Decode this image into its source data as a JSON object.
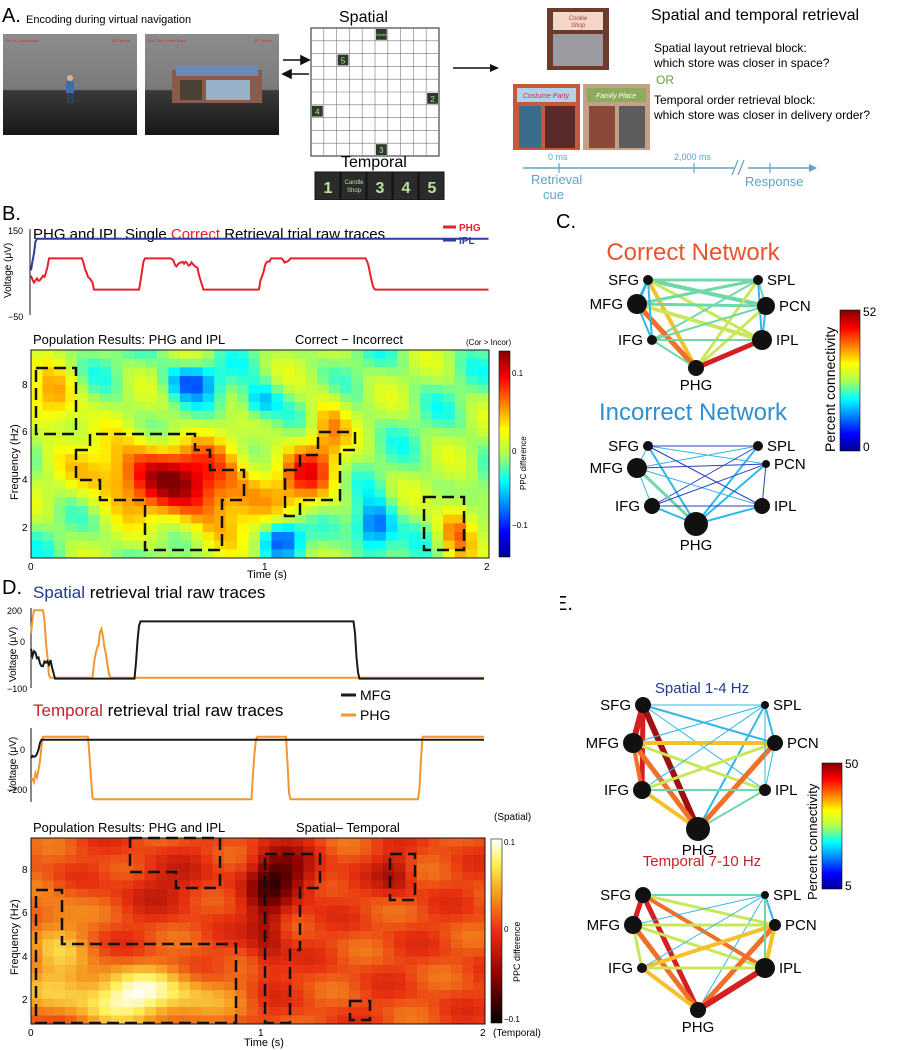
{
  "panelA": {
    "label": "A.",
    "encoding_caption": "Encoding during virtual navigation",
    "screenshot1_hud_left": "Find a Laundromat",
    "screenshot1_hud_right": "327 points",
    "screenshot2_hud_left": "Find The Coffee Shop",
    "screenshot2_hud_right": "327 points",
    "spatial_title": "Spatial",
    "temporal_title": "Temporal",
    "grid_markers": [
      "5",
      "4",
      "2",
      "3"
    ],
    "grid_top_marker": "Candle",
    "temporal_sequence": [
      "1",
      "Candle Shop",
      "3",
      "4",
      "5"
    ],
    "retrieval_title": "Spatial and temporal retrieval",
    "spatial_block_line1": "Spatial layout retrieval block:",
    "spatial_block_line2": "which store was closer in space?",
    "or_text": "OR",
    "temporal_block_line1": "Temporal order retrieval block:",
    "temporal_block_line2": "which store was closer in delivery order?",
    "stores": [
      "Cookie Shop",
      "Costume Party",
      "Family Place"
    ],
    "timeline": {
      "tick1": "0 ms",
      "tick2": "2,000 ms",
      "cue": "Retrieval cue",
      "response": "Response"
    }
  },
  "panelB": {
    "label": "B.",
    "trace_title_pre": "PHG and IPL Single ",
    "trace_title_word": "Correct",
    "trace_title_post": " Retrieval trial raw traces",
    "y_axis": "Voltage (μV)",
    "y_ticks": [
      "150",
      "−50"
    ],
    "legend": [
      "PHG",
      "IPL"
    ],
    "heatmap_title_left": "Population Results:  PHG and IPL",
    "heatmap_title_right": "Correct − Incorrect",
    "colorbar_top_label": "(Cor > Incor)",
    "colorbar_label": "PPC difference",
    "colorbar_ticks": [
      "0.1",
      "0",
      "−0.1"
    ],
    "heatmap_y_label": "Frequency (Hz)",
    "heatmap_y_ticks": [
      "8",
      "6",
      "4",
      "2"
    ],
    "heatmap_x_ticks": [
      "0",
      "1",
      "2"
    ],
    "heatmap_x_label": "Time (s)"
  },
  "panelC": {
    "label": "C.",
    "correct_title": "Correct Network",
    "incorrect_title": "Incorrect Network",
    "nodes": [
      "SFG",
      "SPL",
      "MFG",
      "PCN",
      "IFG",
      "IPL",
      "PHG"
    ],
    "colorbar_label": "Percent connectivity",
    "colorbar_max": "52",
    "colorbar_min": "0"
  },
  "panelD": {
    "label": "D.",
    "spatial_title_word": "Spatial",
    "spatial_title_rest": " retrieval trial raw traces",
    "temporal_title_word": "Temporal",
    "temporal_title_rest": " retrieval trial raw traces",
    "y_axis": "Voltage (μV)",
    "spatial_y_ticks": [
      "200",
      "0",
      "−100"
    ],
    "temporal_y_ticks": [
      "0",
      "−200"
    ],
    "legend": [
      "MFG",
      "PHG"
    ],
    "heatmap_title_left": "Population Results:  PHG and IPL",
    "heatmap_title_right": "Spatial– Temporal",
    "colorbar_top_label": "(Spatial)",
    "colorbar_bottom_label": "(Temporal)",
    "colorbar_label": "PPC difference",
    "colorbar_ticks": [
      "0.1",
      "0",
      "−0.1"
    ],
    "heatmap_y_label": "Frequency (Hz)",
    "heatmap_y_ticks": [
      "8",
      "6",
      "4",
      "2"
    ],
    "heatmap_x_ticks": [
      "0",
      "1",
      "2"
    ],
    "heatmap_x_label": "Time (s)"
  },
  "panelE": {
    "label": "E.",
    "spatial_title": "Spatial 1-4 Hz",
    "temporal_title": "Temporal 7-10 Hz",
    "nodes": [
      "SFG",
      "SPL",
      "MFG",
      "PCN",
      "IFG",
      "IPL",
      "PHG"
    ],
    "colorbar_label": "Percent connectivity",
    "colorbar_max": "50",
    "colorbar_min": "5"
  },
  "colors": {
    "phg_red": "#e8202a",
    "ipl_blue": "#2a3f9b",
    "mfg_black": "#1a1a1a",
    "phg_orange": "#f39530",
    "correct_orange": "#e9542f",
    "incorrect_blue": "#2f8fd0",
    "spatial_blue": "#1f3b8f",
    "temporal_red": "#c2222a",
    "timeline_blue": "#5fa3c9"
  }
}
